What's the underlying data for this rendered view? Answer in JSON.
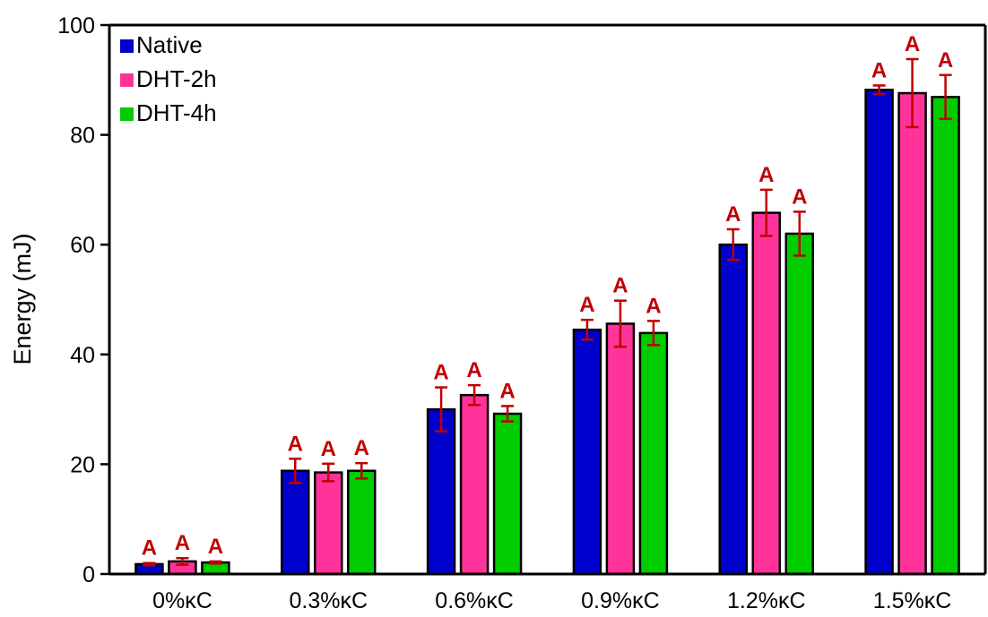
{
  "chart_data": {
    "type": "bar",
    "title": "",
    "xlabel": "",
    "ylabel": "Energy (mJ)",
    "ylim": [
      0,
      100
    ],
    "yticks": [
      0,
      20,
      40,
      60,
      80,
      100
    ],
    "grid": false,
    "legend_position": "top-left",
    "categories": [
      "0%κC",
      "0.3%κC",
      "0.6%κC",
      "0.9%κC",
      "1.2%κC",
      "1.5%κC"
    ],
    "series": [
      {
        "name": "Native",
        "color": "#0000cc",
        "values": [
          1.8,
          18.8,
          30.0,
          44.5,
          60.0,
          88.2
        ],
        "errors": [
          0.2,
          2.2,
          4.0,
          1.8,
          2.8,
          0.8
        ]
      },
      {
        "name": "DHT-2h",
        "color": "#ff3399",
        "values": [
          2.3,
          18.5,
          32.6,
          45.6,
          65.8,
          87.6
        ],
        "errors": [
          0.6,
          1.6,
          1.8,
          4.2,
          4.2,
          6.2
        ]
      },
      {
        "name": "DHT-4h",
        "color": "#00cc00",
        "values": [
          2.1,
          18.8,
          29.2,
          43.9,
          62.0,
          86.9
        ],
        "errors": [
          0.2,
          1.4,
          1.4,
          2.2,
          4.0,
          4.0
        ]
      }
    ],
    "significance_label": "A",
    "significance_color": "#c00000",
    "errorbar_color": "#c00000"
  }
}
